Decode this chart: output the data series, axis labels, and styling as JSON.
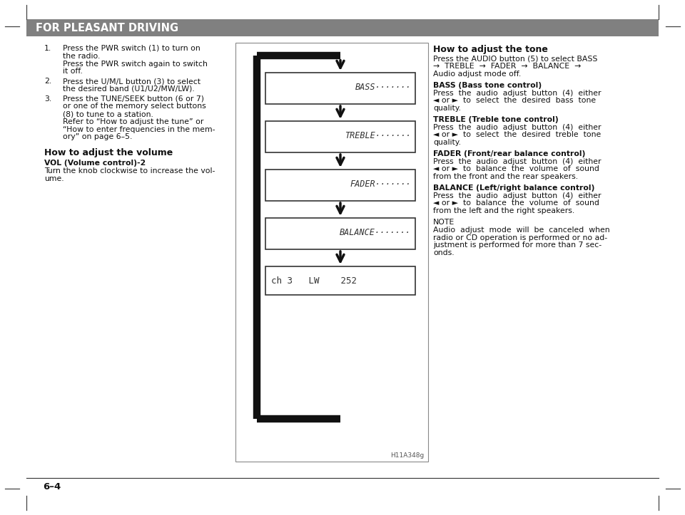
{
  "bg_color": "#ffffff",
  "header_bg": "#808080",
  "header_text": "FOR PLEASANT DRIVING",
  "header_text_color": "#ffffff",
  "header_fontsize": 10.5,
  "page_number": "6–4",
  "right_col_title": "How to adjust the tone",
  "right_col_intro_lines": [
    "Press the AUDIO button (5) to select BASS",
    "→  TREBLE  →  FADER  →  BALANCE  →",
    "Audio adjust mode off."
  ],
  "right_sections": [
    {
      "heading": "BASS (Bass tone control)",
      "heading_bold": true,
      "body_lines": [
        "Press  the  audio  adjust  button  (4)  either",
        "◄ or ►  to  select  the  desired  bass  tone",
        "quality."
      ]
    },
    {
      "heading": "TREBLE (Treble tone control)",
      "heading_bold": true,
      "body_lines": [
        "Press  the  audio  adjust  button  (4)  either",
        "◄ or ►  to  select  the  desired  treble  tone",
        "quality."
      ]
    },
    {
      "heading": "FADER (Front/rear balance control)",
      "heading_bold": true,
      "body_lines": [
        "Press  the  audio  adjust  button  (4)  either",
        "◄ or ►  to  balance  the  volume  of  sound",
        "from the front and the rear speakers."
      ]
    },
    {
      "heading": "BALANCE (Left/right balance control)",
      "heading_bold": true,
      "body_lines": [
        "Press  the  audio  adjust  button  (4)  either",
        "◄ or ►  to  balance  the  volume  of  sound",
        "from the left and the right speakers."
      ]
    },
    {
      "heading": "NOTE",
      "heading_bold": false,
      "body_lines": [
        "Audio  adjust  mode  will  be  canceled  when",
        "radio or CD operation is performed or no ad-",
        "justment is performed for more than 7 sec-",
        "onds."
      ]
    }
  ],
  "diagram_boxes": [
    "BASS",
    "TREBLE",
    "FADER",
    "BALANCE"
  ],
  "diagram_bottom_text": "ch 3   LW    252",
  "diagram_label": "H11A348g",
  "body_fontsize": 7.8,
  "heading_fontsize": 8.2,
  "title_fontsize": 9.0
}
